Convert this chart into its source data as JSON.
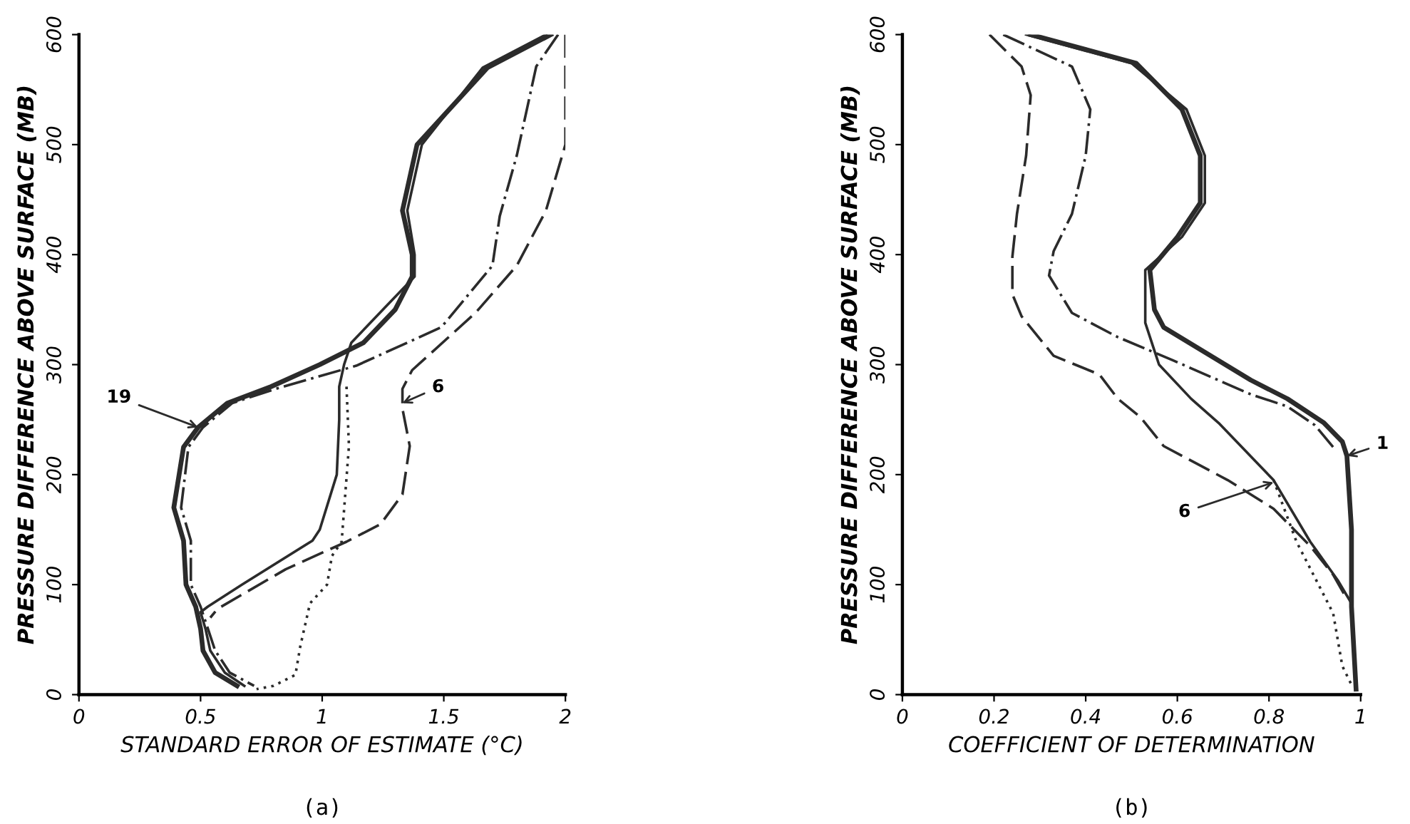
{
  "chart_data": [
    {
      "type": "line",
      "title": "(a)",
      "xlabel": "STANDARD ERROR OF ESTIMATE (°C)",
      "ylabel": "PRESSURE DIFFERENCE ABOVE SURFACE (MB)",
      "xlim": [
        0,
        2
      ],
      "xticks": [
        0,
        0.5,
        1,
        1.5,
        2
      ],
      "ylim": [
        0,
        600
      ],
      "yticks": [
        0,
        100,
        200,
        300,
        400,
        500,
        600
      ],
      "grid": false,
      "marker": "none",
      "series": [
        {
          "color": "#2b2b2b",
          "line_style": "solid",
          "x": [
            1.94,
            1.68,
            1.39,
            1.33,
            1.37,
            1.37,
            1.3,
            1.17,
            0.99,
            0.79,
            0.61,
            0.49,
            0.43,
            0.39,
            0.43,
            0.44,
            0.48,
            0.5,
            0.51,
            0.56,
            0.65
          ],
          "values": [
            600,
            570,
            500,
            440,
            400,
            380,
            350,
            320,
            300,
            280,
            265,
            243,
            225,
            170,
            140,
            100,
            80,
            60,
            40,
            20,
            8
          ]
        },
        {
          "color": "#2b2b2b",
          "line_style": "solid",
          "x": [
            1.92,
            1.66,
            1.41,
            1.35,
            1.38,
            1.38,
            1.25,
            1.12,
            1.09,
            1.07,
            1.07,
            1.06,
            0.99,
            0.96,
            0.67,
            0.53,
            0.5,
            0.52,
            0.54,
            0.6,
            0.68
          ],
          "values": [
            600,
            570,
            500,
            440,
            400,
            380,
            350,
            320,
            300,
            280,
            250,
            200,
            150,
            140,
            100,
            80,
            75,
            60,
            40,
            20,
            8
          ]
        },
        {
          "color": "#2b2b2b",
          "line_style": "dotted",
          "x": [
            1.1,
            1.11,
            1.08,
            1.04,
            1.02,
            0.95,
            0.91,
            0.89,
            0.8,
            0.73
          ],
          "values": [
            280,
            226,
            139,
            126,
            100,
            83,
            44,
            18,
            8,
            5
          ]
        },
        {
          "color": "#2b2b2b",
          "line_style": "dashdot",
          "x": [
            1.97,
            1.88,
            1.8,
            1.73,
            1.7,
            1.49,
            1.14,
            0.81,
            0.63,
            0.51,
            0.45,
            0.42,
            0.46,
            0.46,
            0.5,
            0.53,
            0.56,
            0.62,
            0.72
          ],
          "values": [
            600,
            571,
            490,
            435,
            390,
            334,
            299,
            278,
            265,
            243,
            225,
            170,
            140,
            100,
            80,
            60,
            40,
            20,
            8
          ]
        },
        {
          "color": "#2b2b2b",
          "line_style": "dashed",
          "x": [
            2.0,
            2.0,
            2.0,
            1.92,
            1.8,
            1.63,
            1.37,
            1.33,
            1.33,
            1.36,
            1.33,
            1.24,
            1.1,
            0.85,
            0.57,
            0.54
          ],
          "values": [
            600,
            560,
            500,
            440,
            390,
            347,
            295,
            278,
            260,
            226,
            182,
            155,
            139,
            114,
            78,
            70
          ]
        }
      ],
      "annotations": [
        {
          "text": "19",
          "x": 0.49,
          "y": 243
        },
        {
          "text": "6",
          "x": 1.33,
          "y": 265
        }
      ]
    },
    {
      "type": "line",
      "title": "(b)",
      "xlabel": "COEFFICIENT OF DETERMINATION",
      "ylabel": "PRESSURE DIFFERENCE ABOVE SURFACE (MB)",
      "xlim": [
        0,
        1
      ],
      "xticks": [
        0,
        0.2,
        0.4,
        0.6,
        0.8,
        1
      ],
      "ylim": [
        0,
        600
      ],
      "yticks": [
        0,
        100,
        200,
        300,
        400,
        500,
        600
      ],
      "grid": false,
      "marker": "none",
      "series": [
        {
          "color": "#2b2b2b",
          "line_style": "solid",
          "x": [
            0.28,
            0.51,
            0.61,
            0.65,
            0.65,
            0.6,
            0.54,
            0.55,
            0.57,
            0.76,
            0.84,
            0.92,
            0.96,
            0.97,
            0.98,
            0.98,
            0.99
          ],
          "values": [
            600,
            574,
            532,
            490,
            447,
            416,
            386,
            350,
            334,
            286,
            269,
            247,
            230,
            217,
            150,
            80,
            5
          ]
        },
        {
          "color": "#2b2b2b",
          "line_style": "solid",
          "x": [
            0.27,
            0.5,
            0.62,
            0.66,
            0.66,
            0.61,
            0.53,
            0.53,
            0.56,
            0.63,
            0.69,
            0.81,
            0.89,
            0.95,
            0.98
          ],
          "values": [
            600,
            574,
            532,
            490,
            447,
            416,
            386,
            338,
            300,
            269,
            247,
            195,
            139,
            104,
            83
          ]
        },
        {
          "color": "#2b2b2b",
          "line_style": "dotted",
          "x": [
            0.81,
            0.86,
            0.94,
            0.96,
            0.98
          ],
          "values": [
            195,
            139,
            74,
            26,
            9
          ]
        },
        {
          "color": "#2b2b2b",
          "line_style": "dashdot",
          "x": [
            0.22,
            0.37,
            0.41,
            0.4,
            0.37,
            0.33,
            0.32,
            0.37,
            0.47,
            0.59,
            0.76,
            0.84,
            0.9,
            0.94
          ],
          "values": [
            600,
            571,
            532,
            490,
            437,
            403,
            381,
            347,
            325,
            304,
            273,
            262,
            245,
            225
          ]
        },
        {
          "color": "#2b2b2b",
          "line_style": "dashed",
          "x": [
            0.19,
            0.26,
            0.28,
            0.27,
            0.25,
            0.24,
            0.24,
            0.26,
            0.33,
            0.43,
            0.47,
            0.52,
            0.57,
            0.71,
            0.81,
            0.89,
            0.94,
            0.97
          ],
          "values": [
            600,
            571,
            545,
            490,
            437,
            398,
            364,
            344,
            308,
            291,
            269,
            252,
            226,
            195,
            169,
            135,
            109,
            87
          ]
        }
      ],
      "annotations": [
        {
          "text": "1",
          "x": 0.97,
          "y": 217
        },
        {
          "text": "6",
          "x": 0.81,
          "y": 193
        }
      ]
    }
  ]
}
